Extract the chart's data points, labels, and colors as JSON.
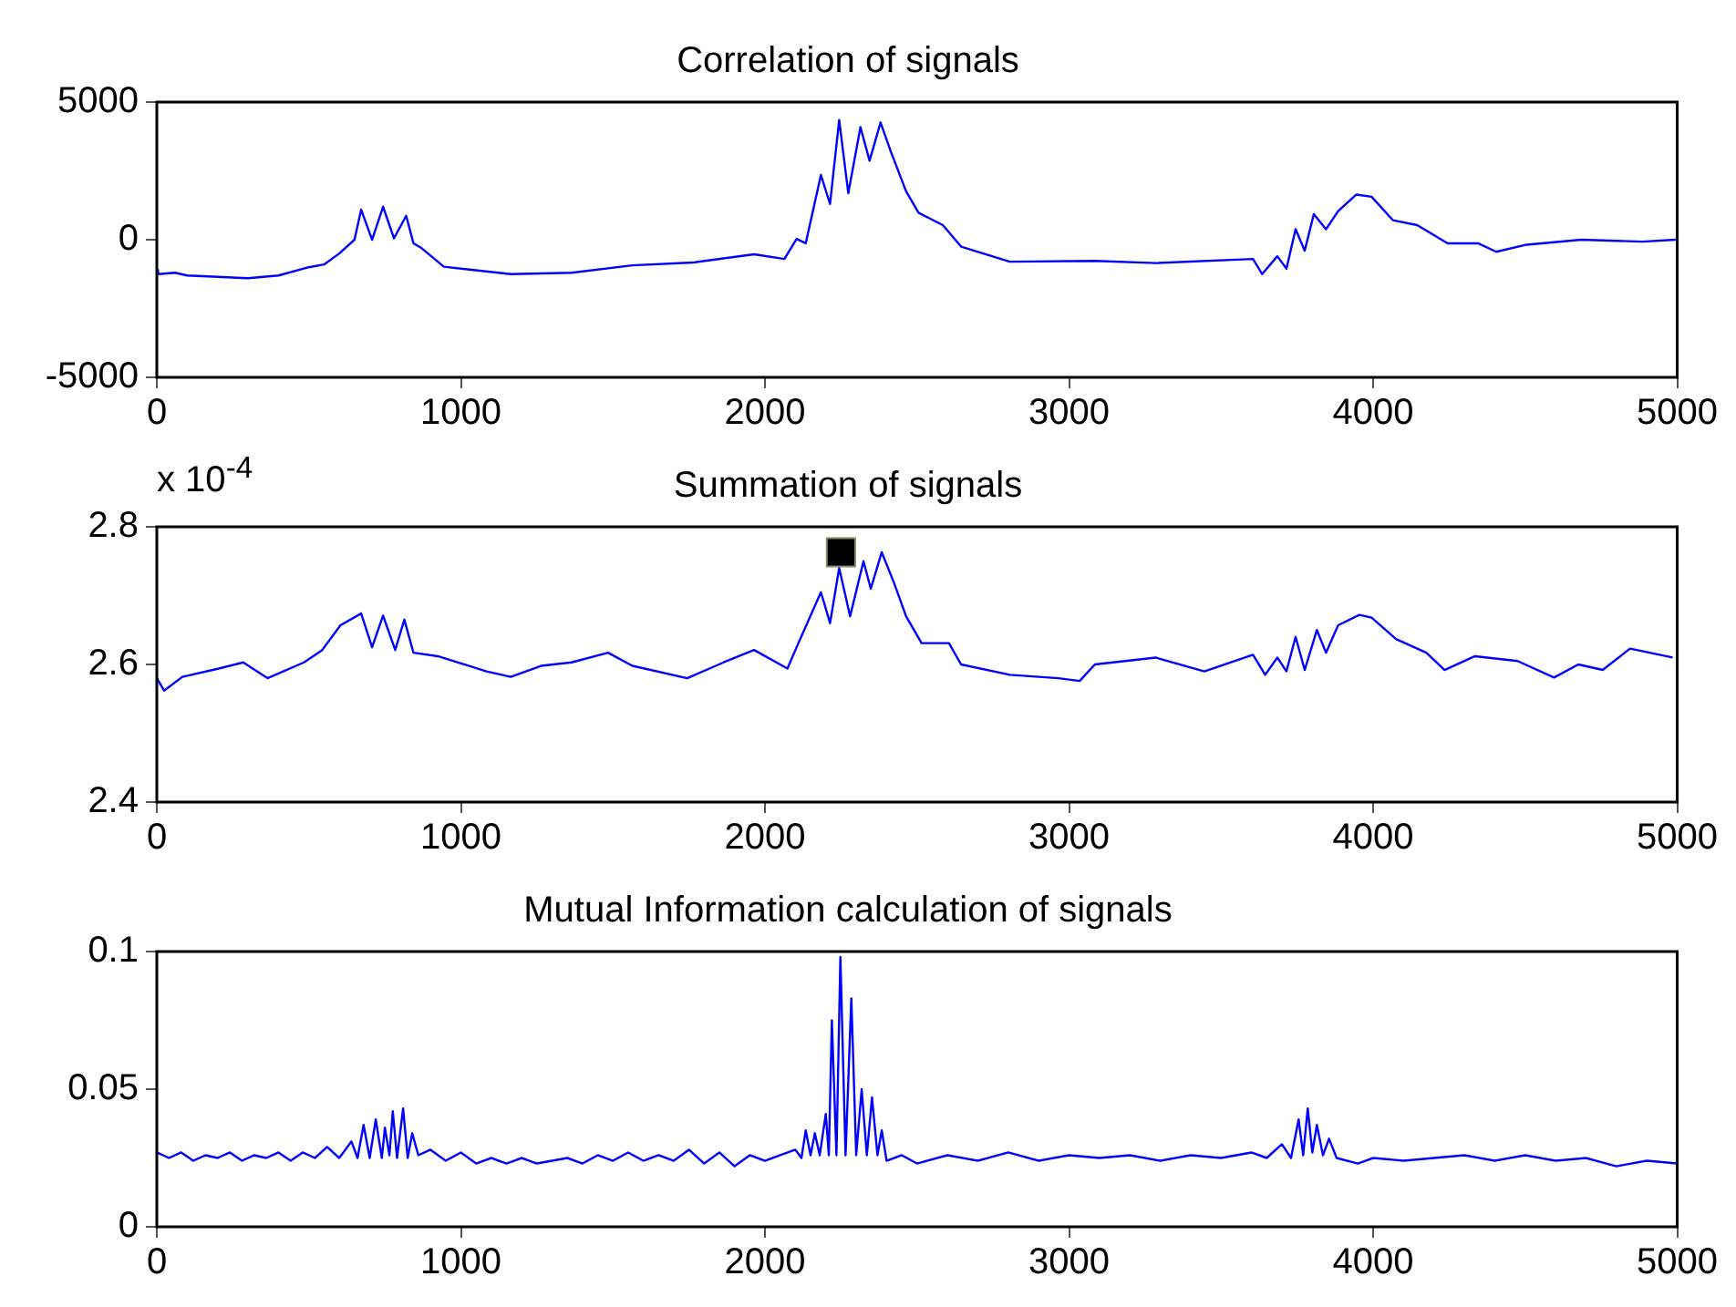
{
  "chart_data": [
    {
      "type": "line",
      "title": "Correlation of signals",
      "xlim": [
        0,
        5000
      ],
      "xticks": [
        0,
        1000,
        2000,
        3000,
        4000,
        5000
      ],
      "ylim": [
        -5000,
        5000
      ],
      "yticks": [
        -5000,
        0,
        5000
      ],
      "grid": false,
      "legend": false,
      "series": [
        {
          "color": "#0000ff",
          "x": [
            0,
            4,
            60,
            100,
            200,
            300,
            400,
            500,
            550,
            600,
            650,
            672,
            708,
            744,
            780,
            820,
            844,
            870,
            944,
            1164,
            1364,
            1564,
            1764,
            1964,
            2064,
            2104,
            2134,
            2184,
            2214,
            2244,
            2274,
            2314,
            2344,
            2380,
            2414,
            2464,
            2505,
            2585,
            2645,
            2805,
            3085,
            3285,
            3605,
            3635,
            3685,
            3715,
            3745,
            3775,
            3805,
            3845,
            3885,
            3945,
            3995,
            4065,
            4145,
            4245,
            4345,
            4405,
            4505,
            4685,
            4885,
            4995
          ],
          "values": [
            -1100,
            -1250,
            -1200,
            -1300,
            -1350,
            -1400,
            -1300,
            -1000,
            -900,
            -500,
            0,
            1090,
            0,
            1200,
            50,
            870,
            -130,
            -300,
            -980,
            -1250,
            -1200,
            -930,
            -830,
            -530,
            -700,
            30,
            -130,
            2350,
            1300,
            4350,
            1690,
            4090,
            2870,
            4260,
            3200,
            1760,
            980,
            530,
            -250,
            -800,
            -770,
            -850,
            -700,
            -1250,
            -600,
            -1050,
            380,
            -400,
            930,
            380,
            1040,
            1640,
            1560,
            710,
            530,
            -130,
            -130,
            -440,
            -180,
            0,
            -70,
            0
          ]
        }
      ]
    },
    {
      "type": "line",
      "title": "Summation of signals",
      "xlim": [
        0,
        5000
      ],
      "xticks": [
        0,
        1000,
        2000,
        3000,
        4000,
        5000
      ],
      "ylim": [
        2.4,
        2.8
      ],
      "yticks": [
        2.4,
        2.6,
        2.8
      ],
      "grid": false,
      "legend": false,
      "annotations": [
        "x 10$^{-4}$"
      ],
      "series": [
        {
          "color": "#0000ff",
          "x": [
            0,
            24,
            84,
            204,
            284,
            364,
            484,
            544,
            604,
            672,
            708,
            744,
            784,
            814,
            844,
            924,
            1084,
            1164,
            1264,
            1364,
            1484,
            1564,
            1744,
            1864,
            1964,
            2074,
            2104,
            2184,
            2214,
            2244,
            2280,
            2324,
            2348,
            2384,
            2424,
            2464,
            2515,
            2605,
            2645,
            2805,
            2965,
            3035,
            3085,
            3285,
            3445,
            3605,
            3645,
            3685,
            3715,
            3745,
            3775,
            3815,
            3845,
            3885,
            3955,
            3995,
            4075,
            4175,
            4235,
            4335,
            4475,
            4595,
            4675,
            4755,
            4845,
            4985
          ],
          "values": [
            2.58,
            2.562,
            2.582,
            2.594,
            2.603,
            2.58,
            2.603,
            2.621,
            2.657,
            2.674,
            2.625,
            2.671,
            2.621,
            2.665,
            2.617,
            2.612,
            2.59,
            2.582,
            2.598,
            2.603,
            2.617,
            2.598,
            2.58,
            2.603,
            2.621,
            2.594,
            2.625,
            2.705,
            2.66,
            2.74,
            2.67,
            2.75,
            2.71,
            2.763,
            2.719,
            2.67,
            2.631,
            2.631,
            2.6,
            2.585,
            2.58,
            2.576,
            2.6,
            2.61,
            2.59,
            2.614,
            2.585,
            2.61,
            2.59,
            2.64,
            2.592,
            2.65,
            2.617,
            2.657,
            2.672,
            2.668,
            2.637,
            2.617,
            2.592,
            2.612,
            2.605,
            2.581,
            2.6,
            2.592,
            2.623,
            2.61
          ]
        },
        {
          "type": "scatter",
          "marker": "square",
          "color": "#000000",
          "x": [
            2250
          ],
          "values": [
            2.763
          ]
        }
      ]
    },
    {
      "type": "line",
      "title": "Mutual Information calculation of signals",
      "xlim": [
        0,
        5000
      ],
      "xticks": [
        0,
        1000,
        2000,
        3000,
        4000,
        5000
      ],
      "ylim": [
        0,
        0.1
      ],
      "yticks": [
        0,
        0.05,
        0.1
      ],
      "grid": false,
      "legend": false,
      "series": [
        {
          "color": "#0000ff",
          "x": [
            0,
            40,
            80,
            120,
            160,
            200,
            240,
            280,
            320,
            360,
            400,
            440,
            480,
            520,
            560,
            600,
            640,
            660,
            680,
            700,
            720,
            740,
            750,
            765,
            776,
            790,
            810,
            825,
            840,
            860,
            900,
            950,
            1000,
            1050,
            1100,
            1150,
            1200,
            1250,
            1300,
            1350,
            1400,
            1450,
            1500,
            1550,
            1600,
            1650,
            1700,
            1750,
            1800,
            1850,
            1900,
            1950,
            2000,
            2050,
            2100,
            2120,
            2134,
            2150,
            2164,
            2180,
            2200,
            2210,
            2220,
            2235,
            2248,
            2265,
            2284,
            2300,
            2318,
            2335,
            2352,
            2370,
            2384,
            2400,
            2450,
            2500,
            2600,
            2700,
            2800,
            2900,
            3000,
            3100,
            3200,
            3300,
            3400,
            3500,
            3600,
            3650,
            3700,
            3730,
            3755,
            3770,
            3785,
            3800,
            3815,
            3835,
            3855,
            3880,
            3950,
            4000,
            4100,
            4200,
            4300,
            4400,
            4500,
            4600,
            4700,
            4800,
            4900,
            5000
          ],
          "values": [
            0.027,
            0.025,
            0.027,
            0.024,
            0.026,
            0.025,
            0.027,
            0.024,
            0.026,
            0.025,
            0.027,
            0.024,
            0.027,
            0.025,
            0.029,
            0.025,
            0.031,
            0.025,
            0.037,
            0.025,
            0.039,
            0.025,
            0.036,
            0.026,
            0.042,
            0.025,
            0.043,
            0.025,
            0.034,
            0.026,
            0.028,
            0.024,
            0.027,
            0.023,
            0.025,
            0.023,
            0.025,
            0.023,
            0.024,
            0.025,
            0.023,
            0.026,
            0.024,
            0.027,
            0.024,
            0.026,
            0.024,
            0.028,
            0.023,
            0.027,
            0.022,
            0.026,
            0.024,
            0.026,
            0.028,
            0.025,
            0.035,
            0.026,
            0.034,
            0.026,
            0.041,
            0.026,
            0.075,
            0.026,
            0.098,
            0.026,
            0.083,
            0.026,
            0.05,
            0.026,
            0.047,
            0.026,
            0.035,
            0.024,
            0.026,
            0.023,
            0.026,
            0.024,
            0.027,
            0.024,
            0.026,
            0.025,
            0.026,
            0.024,
            0.026,
            0.025,
            0.027,
            0.025,
            0.03,
            0.025,
            0.039,
            0.026,
            0.043,
            0.027,
            0.037,
            0.026,
            0.032,
            0.025,
            0.023,
            0.025,
            0.024,
            0.025,
            0.026,
            0.024,
            0.026,
            0.024,
            0.025,
            0.022,
            0.024,
            0.023
          ]
        }
      ]
    }
  ]
}
